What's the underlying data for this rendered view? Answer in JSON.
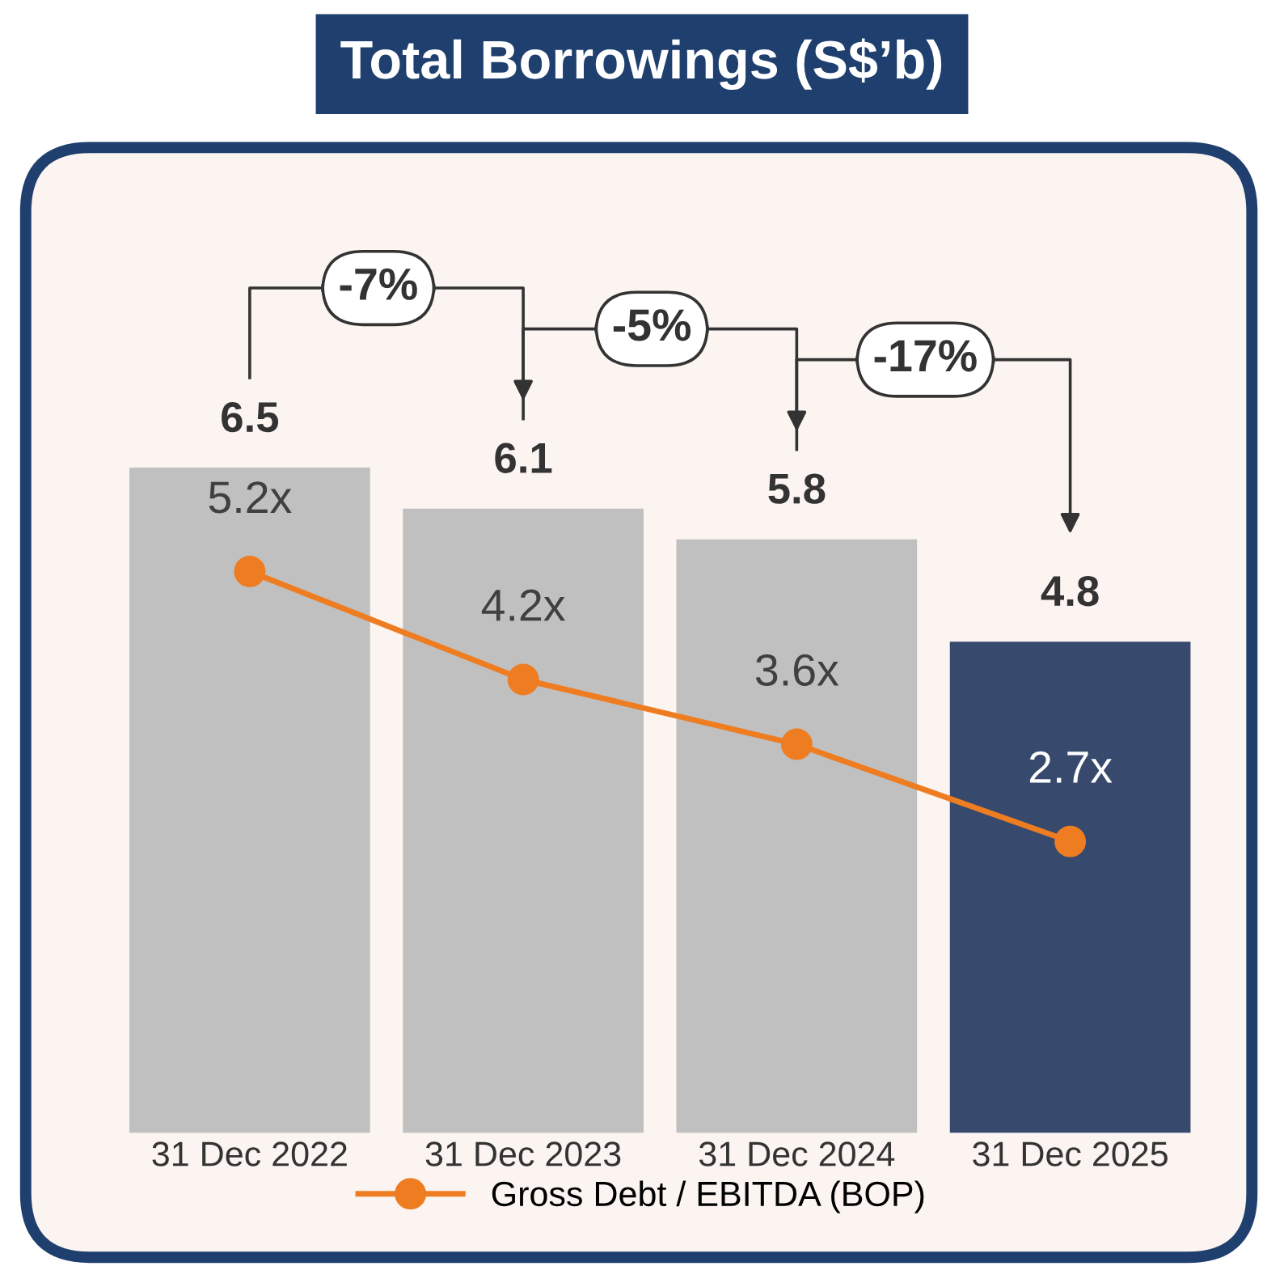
{
  "chart_data": {
    "type": "bar",
    "title": "Total Borrowings (S$’b)",
    "categories": [
      "31 Dec 2022",
      "31 Dec 2023",
      "31 Dec 2024",
      "31 Dec 2025"
    ],
    "series": [
      {
        "values": [
          6.5,
          6.1,
          5.8,
          4.8
        ],
        "colors": [
          "#c0c0c0",
          "#c0c0c0",
          "#c0c0c0",
          "#374a6d"
        ]
      },
      {
        "type": "line",
        "name": "Gross Debt / EBITDA (BOP)",
        "axis": "y2",
        "color": "#ee7d22",
        "marker": "circle",
        "line_style": "solid",
        "values": [
          5.2,
          4.2,
          3.6,
          2.7
        ],
        "value_labels": [
          "5.2x",
          "4.2x",
          "3.6x",
          "2.7x"
        ]
      }
    ],
    "annotations": [
      "-7%",
      "-5%",
      "-17%"
    ],
    "data_labels": true,
    "legend": "bottom",
    "grid": false,
    "tick_labels": "x"
  }
}
